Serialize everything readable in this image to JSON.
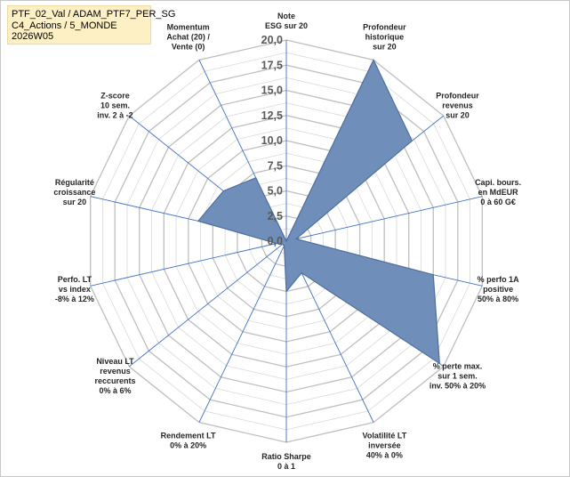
{
  "header": {
    "line1": "PTF_02_Val / ADAM_PTF7_PER_SG",
    "line2": "C4_Actions / 5_MONDE",
    "line3": "2026W05"
  },
  "colors": {
    "fill": "#6f8fba",
    "stroke": "#4f6f9c",
    "spoke": "#4472c4",
    "grid": "#d9d9d9",
    "grid_major": "#bfbfbf"
  },
  "chart_data": {
    "type": "radar",
    "title": "",
    "rmin": 0,
    "rmax": 20,
    "major_step": 2.5,
    "minor_step": 1.25,
    "tick_labels": [
      "0,0",
      "2,5",
      "5,0",
      "7,5",
      "10,0",
      "12,5",
      "15,0",
      "17,5",
      "20,0"
    ],
    "axes": [
      {
        "label": [
          "Note",
          "ESG sur 20"
        ],
        "value": 0
      },
      {
        "label": [
          "Profondeur",
          "historique",
          "sur 20"
        ],
        "value": 20
      },
      {
        "label": [
          "Profondeur",
          "revenus",
          "sur 20"
        ],
        "value": 16
      },
      {
        "label": [
          "Capi. bours.",
          "en MdEUR",
          "0 à 60 G€"
        ],
        "value": 1
      },
      {
        "label": [
          "% perfo 1A",
          "positive",
          "50% à 80%"
        ],
        "value": 15
      },
      {
        "label": [
          "% perte max.",
          "sur 1 sem.",
          "inv. 50% à 20%"
        ],
        "value": 19.5
      },
      {
        "label": [
          "Volatilité LT",
          "inversée",
          "40% à 0%"
        ],
        "value": 3.5
      },
      {
        "label": [
          "Ratio Sharpe",
          "0 à 1"
        ],
        "value": 5
      },
      {
        "label": [
          "Rendement LT",
          "0% à 20%"
        ],
        "value": 0.5
      },
      {
        "label": [
          "Niveau LT",
          "revenus",
          "reccurents",
          "0% à 6%"
        ],
        "value": 0.5
      },
      {
        "label": [
          "Perfo. LT",
          "vs index",
          "-8% à 12%"
        ],
        "value": 1
      },
      {
        "label": [
          "Régularité",
          "croissance",
          "sur 20"
        ],
        "value": 9
      },
      {
        "label": [
          "Z-score",
          "10 sem.",
          "inv. 2 à -2"
        ],
        "value": 8
      },
      {
        "label": [
          "Momentum",
          "Achat (20) /",
          "Vente (0)"
        ],
        "value": 7
      }
    ]
  }
}
